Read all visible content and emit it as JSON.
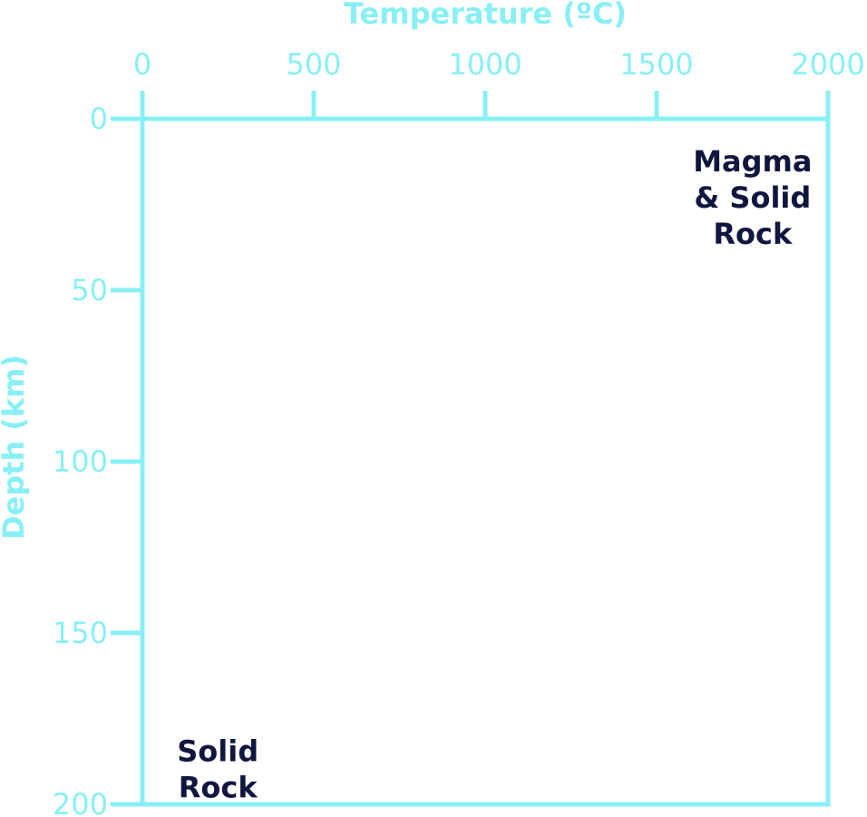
{
  "colors": {
    "axis": "#88f0f5",
    "annotation": "#11163f",
    "background": "#ffffff"
  },
  "chart_data": {
    "type": "line",
    "title": "",
    "xlabel": "Temperature (ºC)",
    "ylabel": "Depth (km)",
    "x_axis_position": "top",
    "y_inverted": true,
    "xlim": [
      0,
      2000
    ],
    "ylim": [
      0,
      200
    ],
    "xticks": [
      "0",
      "500",
      "1000",
      "1500",
      "2000"
    ],
    "yticks": [
      "0",
      "50",
      "100",
      "150",
      "200"
    ],
    "grid": false,
    "series": [],
    "annotations": [
      {
        "lines": [
          "Magma",
          "& Solid",
          "Rock"
        ],
        "x": 1780,
        "y": 8
      },
      {
        "lines": [
          "Solid",
          "Rock"
        ],
        "x": 220,
        "y": 180
      }
    ]
  }
}
